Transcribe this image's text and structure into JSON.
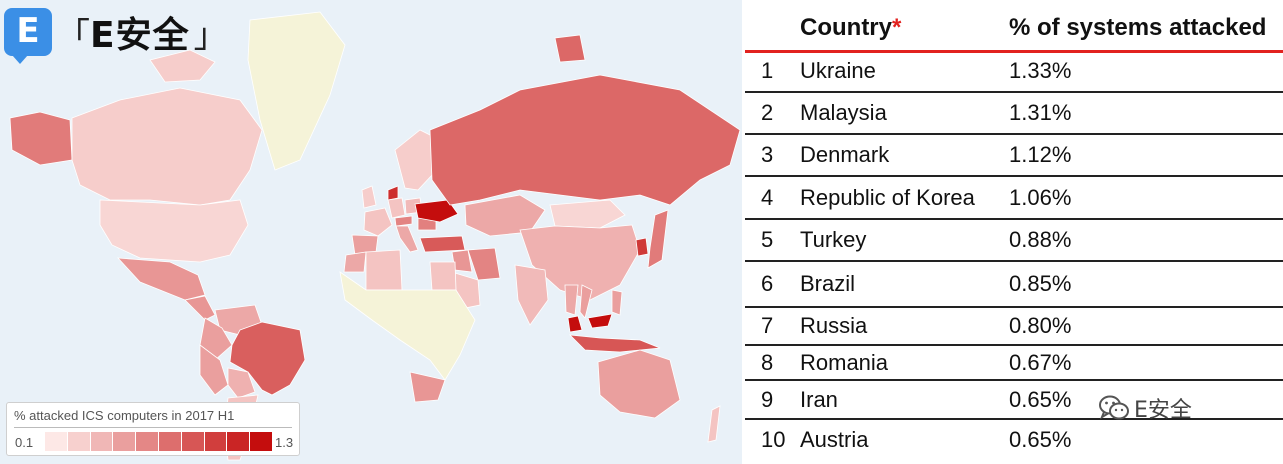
{
  "logo": {
    "badge": "E",
    "wordmark": "E安全",
    "bracket_open": "「",
    "bracket_close": "」"
  },
  "watermark": {
    "text": "E安全"
  },
  "legend": {
    "title": "% attacked ICS computers in 2017 H1",
    "min": "0.1",
    "max": "1.3"
  },
  "colors": {
    "ocean": "#e9f1f8",
    "scale_low": "#fde8e6",
    "scale_high": "#c40d0d",
    "header_rule": "#e2221f",
    "no_data_land": "#f5f3d8"
  },
  "table": {
    "headers": {
      "country": "Country",
      "country_marker": "*",
      "percent": "% of systems attacked"
    },
    "rows": [
      {
        "rank": "1",
        "country": "Ukraine",
        "percent": "1.33%"
      },
      {
        "rank": "2",
        "country": "Malaysia",
        "percent": "1.31%"
      },
      {
        "rank": "3",
        "country": "Denmark",
        "percent": "1.12%"
      },
      {
        "rank": "4",
        "country": "Republic of Korea",
        "percent": "1.06%"
      },
      {
        "rank": "5",
        "country": "Turkey",
        "percent": "0.88%"
      },
      {
        "rank": "6",
        "country": "Brazil",
        "percent": "0.85%"
      },
      {
        "rank": "7",
        "country": "Russia",
        "percent": "0.80%"
      },
      {
        "rank": "8",
        "country": "Romania",
        "percent": "0.67%"
      },
      {
        "rank": "9",
        "country": "Iran",
        "percent": "0.65%"
      },
      {
        "rank": "10",
        "country": "Austria",
        "percent": "0.65%"
      }
    ]
  },
  "chart_data": {
    "type": "table",
    "title": "% attacked ICS computers in 2017 H1",
    "columns": [
      "",
      "Country",
      "% of systems attacked"
    ],
    "categories": [
      "Ukraine",
      "Malaysia",
      "Denmark",
      "Republic of Korea",
      "Turkey",
      "Brazil",
      "Russia",
      "Romania",
      "Iran",
      "Austria"
    ],
    "values": [
      1.33,
      1.31,
      1.12,
      1.06,
      0.88,
      0.85,
      0.8,
      0.67,
      0.65,
      0.65
    ],
    "scale_range": [
      0.1,
      1.3
    ],
    "map_intensity": {
      "Ukraine": 1.33,
      "Malaysia": 1.31,
      "Denmark": 1.12,
      "Republic of Korea": 1.06,
      "Turkey": 0.88,
      "Brazil": 0.85,
      "Russia": 0.8,
      "Romania": 0.67,
      "Iran": 0.65,
      "Austria": 0.65,
      "Indonesia": 0.9,
      "Japan": 0.7,
      "Kazakhstan": 0.45,
      "China": 0.4,
      "Australia": 0.5,
      "Canada": 0.25,
      "USA": 0.2,
      "Mexico": 0.55,
      "Colombia": 0.5,
      "Peru": 0.5,
      "Venezuela": 0.45,
      "Argentina": 0.3,
      "Bolivia": 0.4,
      "Spain": 0.5,
      "Italy": 0.45,
      "France": 0.3,
      "UK": 0.25,
      "Germany": 0.3,
      "Poland": 0.35,
      "Egypt": 0.3,
      "Algeria": 0.3,
      "Morocco": 0.45,
      "South Africa": 0.55,
      "India": 0.35,
      "Iraq": 0.55,
      "Saudi Arabia": 0.3,
      "Mongolia": 0.2,
      "Vietnam": 0.5,
      "Thailand": 0.45,
      "Philippines": 0.5,
      "Greenland": 0.0,
      "Scandinavia": 0.25,
      "New Zealand": 0.3,
      "Alaska": 0.7
    }
  }
}
